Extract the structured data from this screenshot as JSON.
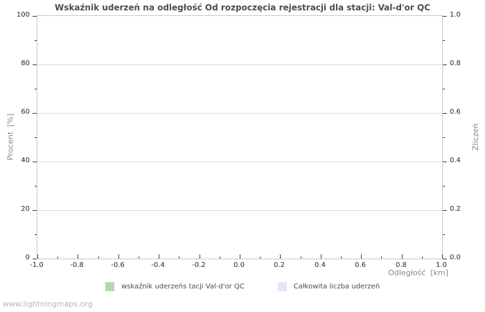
{
  "page": {
    "watermark": "www.lightningmaps.org"
  },
  "chart_data": {
    "type": "line",
    "title": "Wskaźnik uderzeń na odległość Od rozpoczęcia rejestracji dla stacji: Val-d'or QC",
    "x_axis": {
      "label": "Odległość  [km]",
      "min": -1.0,
      "max": 1.0,
      "ticks": [
        -1.0,
        -0.8,
        -0.6,
        -0.4,
        -0.2,
        0.0,
        0.2,
        0.4,
        0.6,
        0.8,
        1.0
      ],
      "tick_labels": [
        "-1.0",
        "-0.8",
        "-0.6",
        "-0.4",
        "-0.2",
        "0.0",
        "0.2",
        "0.4",
        "0.6",
        "0.8",
        "1.0"
      ],
      "minor_ticks_between_majors": 1
    },
    "y_left": {
      "label": "Procent  [%]",
      "min": 0,
      "max": 100,
      "ticks": [
        0,
        20,
        40,
        60,
        80,
        100
      ],
      "tick_labels": [
        "0",
        "20",
        "40",
        "60",
        "80",
        "100"
      ],
      "minor_ticks_between_majors": 1
    },
    "y_right": {
      "label": "Zliczeń",
      "min": 0.0,
      "max": 1.0,
      "ticks": [
        0.0,
        0.2,
        0.4,
        0.6,
        0.8,
        1.0
      ],
      "tick_labels": [
        "0.0",
        "0.2",
        "0.4",
        "0.6",
        "0.8",
        "1.0"
      ],
      "minor_ticks_between_majors": 1
    },
    "grid": {
      "horizontal_major": true,
      "vertical": false
    },
    "legend_position": "bottom-center",
    "series": [
      {
        "name": "wskaźnik uderzeńs tacji Val-d'or QC",
        "color": "#b0d9b0",
        "points": []
      },
      {
        "name": "Całkowita liczba uderzeń",
        "color": "#e6e6f7",
        "points": []
      }
    ],
    "colors": {
      "grid": "#dcdcdc",
      "plot_border": "#c9c9c9",
      "tick_mark": "#3a3a3a",
      "tick_text": "#262626",
      "axis_title_text": "#878787",
      "title_text": "#4d4d4d",
      "watermark_text": "#b5b5b5"
    }
  }
}
